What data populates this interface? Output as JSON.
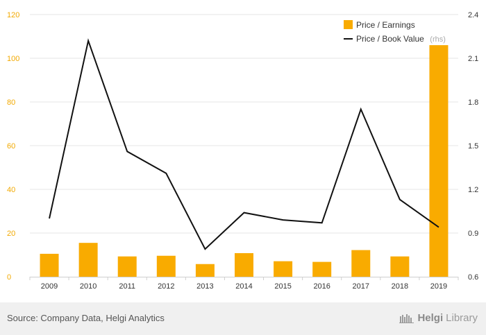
{
  "chart_data": {
    "type": "bar+line",
    "categories": [
      "2009",
      "2010",
      "2011",
      "2012",
      "2013",
      "2014",
      "2015",
      "2016",
      "2017",
      "2018",
      "2019"
    ],
    "series": [
      {
        "name": "Price / Earnings",
        "type": "bar",
        "axis": "left",
        "values": [
          10.5,
          15.5,
          9.3,
          9.6,
          5.8,
          10.8,
          7.1,
          6.8,
          12.2,
          9.3,
          106
        ]
      },
      {
        "name": "Price / Book Value",
        "name_suffix": "(rhs)",
        "type": "line",
        "axis": "right",
        "values": [
          1.0,
          2.22,
          1.46,
          1.31,
          0.79,
          1.04,
          0.99,
          0.97,
          1.75,
          1.13,
          0.94
        ]
      }
    ],
    "y_left": {
      "min": 0,
      "max": 120,
      "ticks": [
        "0",
        "20",
        "40",
        "60",
        "80",
        "100",
        "120"
      ]
    },
    "y_right": {
      "min": 0.6,
      "max": 2.4,
      "ticks": [
        "0.6",
        "0.9",
        "1.2",
        "1.5",
        "1.8",
        "2.1",
        "2.4"
      ]
    },
    "grid": true,
    "legend": "top-right",
    "colors": {
      "bar": "#f9ab00",
      "line": "#111111",
      "left_ticks": "#f2a900",
      "grid": "#e6e6e6"
    }
  },
  "footer": {
    "source": "Source: Company Data, Helgi Analytics",
    "brand_a": "Helgi",
    "brand_b": "Library"
  }
}
